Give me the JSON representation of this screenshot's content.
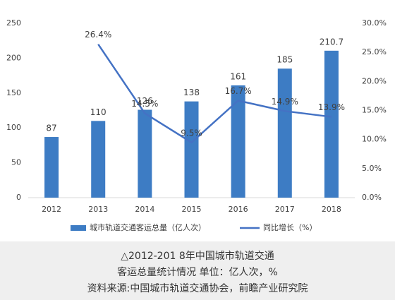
{
  "chart_data": {
    "type": "combo",
    "categories": [
      "2012",
      "2013",
      "2014",
      "2015",
      "2016",
      "2017",
      "2018"
    ],
    "series": [
      {
        "name": "城市轨道交通客运总量（亿人次）",
        "type": "bar",
        "color": "#3d7cc4",
        "values": [
          87,
          110,
          126,
          138,
          161,
          185,
          210.7
        ]
      },
      {
        "name": "同比增长（%）",
        "type": "line",
        "axis": "y2",
        "color": "#4472c4",
        "values": [
          null,
          26.4,
          14.5,
          9.5,
          16.7,
          14.9,
          13.9
        ],
        "value_labels": [
          null,
          "26.4%",
          "14.5%",
          "9.5%",
          "16.7%",
          "14.9%",
          "13.9%"
        ]
      }
    ],
    "ylim": [
      0,
      250
    ],
    "yticks": [
      0,
      50,
      100,
      150,
      200,
      250
    ],
    "y2lim": [
      0,
      30
    ],
    "y2ticks": [
      {
        "value": 0,
        "label": "0.0%"
      },
      {
        "value": 5,
        "label": "5.0%"
      },
      {
        "value": 10,
        "label": "10.0%"
      },
      {
        "value": 15,
        "label": "15.0%"
      },
      {
        "value": 20,
        "label": "20.0%"
      },
      {
        "value": 25,
        "label": "25.0%"
      },
      {
        "value": 30,
        "label": "30.0%"
      }
    ],
    "legend": "bottom",
    "caption": [
      "△2012-201 8年中国城市轨道交通",
      "客运总量统计情况 单位：亿人次，%",
      "资料来源:中国城市轨道交通协会，前瞻产业研究院"
    ]
  }
}
